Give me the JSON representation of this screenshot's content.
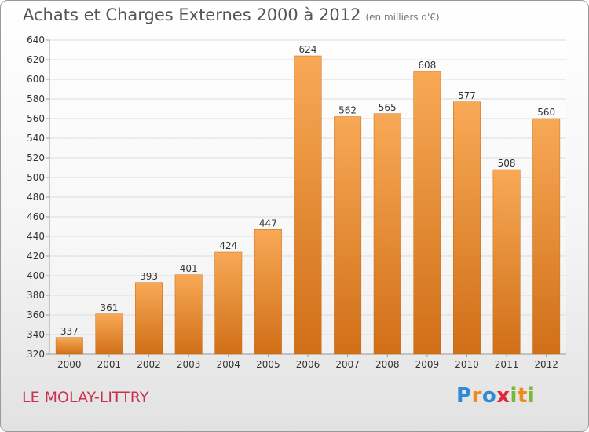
{
  "header": {
    "title": "Achats et Charges Externes 2000 à 2012",
    "subtitle": "(en milliers d'€)"
  },
  "footer": {
    "place": "LE MOLAY-LITTRY",
    "brand": "Proxiti",
    "brand_letters": [
      {
        "ch": "P",
        "color": "#2e8bd6"
      },
      {
        "ch": "r",
        "color": "#f08a1c"
      },
      {
        "ch": "o",
        "color": "#2e8bd6"
      },
      {
        "ch": "x",
        "color": "#e0283a"
      },
      {
        "ch": "i",
        "color": "#7bb83a"
      },
      {
        "ch": "t",
        "color": "#f08a1c"
      },
      {
        "ch": "i",
        "color": "#7bb83a"
      }
    ]
  },
  "chart_data": {
    "type": "bar",
    "title": "Achats et Charges Externes 2000 à 2012",
    "subtitle": "(en milliers d'€)",
    "categories": [
      "2000",
      "2001",
      "2002",
      "2003",
      "2004",
      "2005",
      "2006",
      "2007",
      "2008",
      "2009",
      "2010",
      "2011",
      "2012"
    ],
    "values": [
      337,
      361,
      393,
      401,
      424,
      447,
      624,
      562,
      565,
      608,
      577,
      508,
      560
    ],
    "data_labels": [
      "337",
      "361",
      "393",
      "401",
      "424",
      "447",
      "624",
      "562",
      "565",
      "608",
      "577",
      "508",
      "560"
    ],
    "ylim": [
      320,
      640
    ],
    "yticks": [
      320,
      340,
      360,
      380,
      400,
      420,
      440,
      460,
      480,
      500,
      520,
      540,
      560,
      580,
      600,
      620,
      640
    ],
    "xlabel": "",
    "ylabel": "",
    "grid": true,
    "legend": "none",
    "colors": {
      "bar_light": "#f8a956",
      "bar_dark": "#d06f17",
      "grid": "#dcdcdc",
      "axis": "#999999",
      "tick_text": "#333333"
    }
  }
}
